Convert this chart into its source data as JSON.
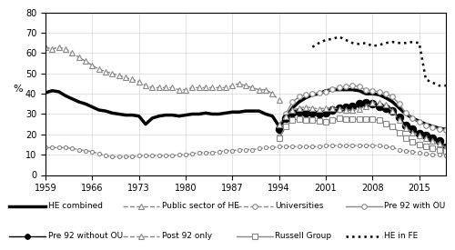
{
  "title": "",
  "ylabel": "%",
  "xlim": [
    1959,
    2019
  ],
  "ylim": [
    0,
    80
  ],
  "yticks": [
    0,
    10,
    20,
    30,
    40,
    50,
    60,
    70,
    80
  ],
  "xticks": [
    1959,
    1966,
    1973,
    1980,
    1987,
    1994,
    2001,
    2008,
    2015
  ],
  "background_color": "#ffffff",
  "series": {
    "HE combined": {
      "x": [
        1959,
        1960,
        1961,
        1962,
        1963,
        1964,
        1965,
        1966,
        1967,
        1968,
        1969,
        1970,
        1971,
        1972,
        1973,
        1974,
        1975,
        1976,
        1977,
        1978,
        1979,
        1980,
        1981,
        1982,
        1983,
        1984,
        1985,
        1986,
        1987,
        1988,
        1989,
        1990,
        1991,
        1992,
        1993,
        1994,
        1995,
        1996,
        1997,
        1998,
        1999,
        2000,
        2001,
        2002,
        2003,
        2004,
        2005,
        2006,
        2007,
        2008,
        2009,
        2010,
        2011,
        2012,
        2013,
        2014,
        2015,
        2016,
        2017,
        2018,
        2019
      ],
      "y": [
        40.5,
        41.5,
        41.0,
        39.0,
        37.5,
        36.0,
        35.0,
        33.5,
        32.0,
        31.5,
        30.5,
        30.0,
        29.5,
        29.5,
        29.0,
        25.0,
        28.0,
        29.0,
        29.5,
        29.5,
        29.0,
        29.5,
        30.0,
        30.0,
        30.5,
        30.0,
        30.0,
        30.5,
        31.0,
        31.0,
        31.5,
        31.5,
        31.5,
        30.0,
        29.0,
        24.0,
        28.0,
        33.0,
        36.0,
        38.0,
        39.5,
        40.0,
        41.5,
        42.0,
        42.0,
        42.0,
        42.0,
        41.5,
        40.0,
        40.0,
        39.5,
        38.0,
        36.0,
        33.0,
        30.0,
        28.0,
        26.5,
        25.0,
        24.0,
        23.0,
        22.5
      ],
      "style": "solid",
      "color": "#000000",
      "linewidth": 2.5,
      "marker": null,
      "markersize": 0,
      "markerfacecolor": "none"
    },
    "Public sector of HE": {
      "x": [
        1959,
        1960,
        1961,
        1962,
        1963,
        1964,
        1965,
        1966,
        1967,
        1968,
        1969,
        1970,
        1971,
        1972,
        1973,
        1974,
        1975,
        1976,
        1977,
        1978,
        1979,
        1980,
        1981,
        1982,
        1983,
        1984,
        1985,
        1986,
        1987,
        1988,
        1989,
        1990,
        1991,
        1992,
        1993,
        1994
      ],
      "y": [
        63,
        62,
        63,
        62,
        60,
        58,
        56,
        54,
        52,
        51,
        50,
        49,
        48,
        47,
        46,
        44,
        43,
        43,
        43,
        43,
        42,
        42,
        43,
        43,
        43,
        43,
        43,
        43,
        44,
        45,
        44,
        43,
        42,
        42,
        40,
        37
      ],
      "style": "dashed",
      "color": "#888888",
      "linewidth": 1.0,
      "marker": "^",
      "markersize": 4,
      "markerfacecolor": "white"
    },
    "Universities": {
      "x": [
        1959,
        1960,
        1961,
        1962,
        1963,
        1964,
        1965,
        1966,
        1967,
        1968,
        1969,
        1970,
        1971,
        1972,
        1973,
        1974,
        1975,
        1976,
        1977,
        1978,
        1979,
        1980,
        1981,
        1982,
        1983,
        1984,
        1985,
        1986,
        1987,
        1988,
        1989,
        1990,
        1991,
        1992,
        1993,
        1994,
        1995,
        1996,
        1997,
        1998,
        1999,
        2000,
        2001,
        2002,
        2003,
        2004,
        2005,
        2006,
        2007,
        2008,
        2009,
        2010,
        2011,
        2012,
        2013,
        2014,
        2015,
        2016,
        2017,
        2018,
        2019
      ],
      "y": [
        13.5,
        13.5,
        13.5,
        13.5,
        13.0,
        12.5,
        12.0,
        11.5,
        10.5,
        9.5,
        9.0,
        9.0,
        9.0,
        9.0,
        9.5,
        9.5,
        9.5,
        9.5,
        9.5,
        9.5,
        10.0,
        10.0,
        10.5,
        11.0,
        11.0,
        11.0,
        11.5,
        12.0,
        12.0,
        12.5,
        12.5,
        12.5,
        13.0,
        13.5,
        13.5,
        14.0,
        14.0,
        14.0,
        14.0,
        14.0,
        14.0,
        14.0,
        14.5,
        14.5,
        14.5,
        14.5,
        14.5,
        14.5,
        14.5,
        14.5,
        14.5,
        14.0,
        13.5,
        12.5,
        12.0,
        11.5,
        11.0,
        10.5,
        10.0,
        10.0,
        9.5
      ],
      "style": "dashed",
      "color": "#888888",
      "linewidth": 1.0,
      "marker": "o",
      "markersize": 3,
      "markerfacecolor": "white"
    },
    "Pre 92 with OU": {
      "x": [
        1994,
        1995,
        1996,
        1997,
        1998,
        1999,
        2000,
        2001,
        2002,
        2003,
        2004,
        2005,
        2006,
        2007,
        2008,
        2009,
        2010,
        2011,
        2012,
        2013,
        2014,
        2015,
        2016,
        2017,
        2018,
        2019
      ],
      "y": [
        19.0,
        30.0,
        36.0,
        38.5,
        39.5,
        40.0,
        40.5,
        41.0,
        42.5,
        43.0,
        43.5,
        44.0,
        43.5,
        42.0,
        41.5,
        41.0,
        40.0,
        38.5,
        35.0,
        30.5,
        28.0,
        26.0,
        24.5,
        23.5,
        22.5,
        22.0
      ],
      "style": "solid",
      "color": "#888888",
      "linewidth": 1.0,
      "marker": "o",
      "markersize": 4,
      "markerfacecolor": "white"
    },
    "Pre 92 without OU": {
      "x": [
        1994,
        1995,
        1996,
        1997,
        1998,
        1999,
        2000,
        2001,
        2002,
        2003,
        2004,
        2005,
        2006,
        2007,
        2008,
        2009,
        2010,
        2011,
        2012,
        2013,
        2014,
        2015,
        2016,
        2017,
        2018,
        2019
      ],
      "y": [
        22.5,
        28.0,
        30.5,
        31.0,
        30.5,
        30.5,
        30.0,
        30.5,
        32.0,
        33.0,
        33.5,
        34.0,
        35.0,
        35.5,
        35.0,
        34.0,
        33.0,
        31.5,
        28.5,
        24.5,
        22.5,
        20.5,
        19.5,
        18.0,
        17.0,
        13.5
      ],
      "style": "solid",
      "color": "#000000",
      "linewidth": 1.0,
      "marker": "o",
      "markersize": 6,
      "markerfacecolor": "#000000"
    },
    "Post 92 only": {
      "x": [
        1994,
        1995,
        1996,
        1997,
        1998,
        1999,
        2000,
        2001,
        2002,
        2003,
        2004,
        2005,
        2006,
        2007,
        2008,
        2009,
        2010,
        2011,
        2012,
        2013,
        2014,
        2015,
        2016,
        2017,
        2018,
        2019
      ],
      "y": [
        25.0,
        29.0,
        32.0,
        33.0,
        33.5,
        33.0,
        32.5,
        33.0,
        33.0,
        32.5,
        32.0,
        32.0,
        32.5,
        34.0,
        35.5,
        35.5,
        34.5,
        31.5,
        27.0,
        23.0,
        21.0,
        19.5,
        18.0,
        17.0,
        15.5,
        13.5
      ],
      "style": "dashed",
      "color": "#888888",
      "linewidth": 1.0,
      "marker": "^",
      "markersize": 4,
      "markerfacecolor": "white"
    },
    "Russell Group": {
      "x": [
        1994,
        1995,
        1996,
        1997,
        1998,
        1999,
        2000,
        2001,
        2002,
        2003,
        2004,
        2005,
        2006,
        2007,
        2008,
        2009,
        2010,
        2011,
        2012,
        2013,
        2014,
        2015,
        2016,
        2017,
        2018,
        2019
      ],
      "y": [
        18.0,
        24.0,
        27.0,
        27.5,
        27.0,
        27.0,
        26.5,
        26.0,
        27.0,
        28.0,
        27.5,
        27.5,
        27.5,
        27.5,
        27.5,
        27.0,
        25.5,
        24.0,
        21.0,
        18.0,
        16.5,
        15.0,
        14.0,
        13.0,
        12.5,
        12.0
      ],
      "style": "solid",
      "color": "#888888",
      "linewidth": 1.0,
      "marker": "s",
      "markersize": 4,
      "markerfacecolor": "white"
    },
    "HE in FE": {
      "x": [
        1999,
        2000,
        2001,
        2002,
        2003,
        2004,
        2005,
        2006,
        2007,
        2008,
        2009,
        2010,
        2011,
        2012,
        2013,
        2014,
        2015,
        2016,
        2017,
        2018,
        2019
      ],
      "y": [
        63.0,
        65.0,
        66.5,
        67.0,
        68.0,
        66.5,
        65.0,
        64.5,
        65.0,
        63.5,
        64.0,
        65.0,
        65.5,
        65.0,
        65.0,
        65.5,
        65.0,
        47.0,
        45.5,
        44.0,
        44.0
      ],
      "style": "dotted",
      "color": "#000000",
      "linewidth": 1.8,
      "marker": null,
      "markersize": 0,
      "markerfacecolor": "none"
    }
  },
  "legend_rows": [
    [
      {
        "label": "HE combined",
        "style": "solid",
        "color": "#000000",
        "linewidth": 2.5,
        "marker": null,
        "markerfacecolor": "none"
      },
      {
        "label": "Public sector of HE",
        "style": "dashed",
        "color": "#888888",
        "linewidth": 1.0,
        "marker": "^",
        "markerfacecolor": "white"
      },
      {
        "label": "Universities",
        "style": "dashed",
        "color": "#888888",
        "linewidth": 1.0,
        "marker": "o",
        "markerfacecolor": "white"
      },
      {
        "label": "Pre 92 with OU",
        "style": "solid",
        "color": "#888888",
        "linewidth": 1.0,
        "marker": "o",
        "markerfacecolor": "white"
      }
    ],
    [
      {
        "label": "Pre 92 without OU",
        "style": "solid",
        "color": "#000000",
        "linewidth": 1.0,
        "marker": "o",
        "markerfacecolor": "#000000"
      },
      {
        "label": "Post 92 only",
        "style": "dashed",
        "color": "#888888",
        "linewidth": 1.0,
        "marker": "^",
        "markerfacecolor": "white"
      },
      {
        "label": "Russell Group",
        "style": "solid",
        "color": "#888888",
        "linewidth": 1.0,
        "marker": "s",
        "markerfacecolor": "white"
      },
      {
        "label": "HE in FE",
        "style": "dotted",
        "color": "#000000",
        "linewidth": 1.8,
        "marker": null,
        "markerfacecolor": "none"
      }
    ]
  ]
}
